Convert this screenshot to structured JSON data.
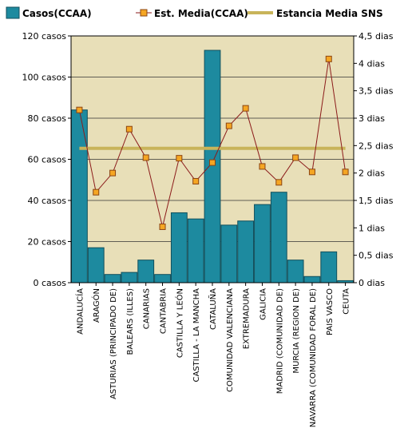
{
  "chart_data": {
    "type": "bar",
    "legend": {
      "position": "top",
      "entries": [
        {
          "label": "Casos(CCAA)",
          "kind": "bar"
        },
        {
          "label": "Est. Media(CCAA)",
          "kind": "line-marker"
        },
        {
          "label": "Estancia Media SNS",
          "kind": "line"
        }
      ]
    },
    "categories": [
      "ANDALUCÍA",
      "ARAGÓN",
      "ASTURIAS (PRINCIPADO DE)",
      "BALEARS (ILLES)",
      "CANARIAS",
      "CANTABRIA",
      "CASTILLA Y LEÓN",
      "CASTILLA - LA MANCHA",
      "CATALUÑA",
      "COMUNIDAD VALENCIANA",
      "EXTREMADURA",
      "GALICIA",
      "MADRID (COMUNIDAD DE)",
      "MURCIA (REGION DE)",
      "NAVARRA (COMUNIDAD FORAL DE)",
      "PAIS VASCO",
      "CEUTA"
    ],
    "series": [
      {
        "name": "Casos(CCAA)",
        "type": "bar",
        "axis": "left",
        "values": [
          84,
          17,
          4,
          5,
          11,
          4,
          34,
          31,
          113,
          28,
          30,
          38,
          44,
          11,
          3,
          15,
          1
        ]
      },
      {
        "name": "Est. Media(CCAA)",
        "type": "line",
        "axis": "right",
        "values": [
          3.15,
          1.65,
          2.0,
          2.8,
          2.28,
          1.02,
          2.27,
          1.85,
          2.19,
          2.86,
          3.18,
          2.12,
          1.83,
          2.28,
          2.02,
          4.08,
          2.02
        ]
      },
      {
        "name": "Estancia Media SNS",
        "type": "constant-line",
        "axis": "right",
        "value": 2.45
      }
    ],
    "y_left": {
      "ylim": [
        0,
        120
      ],
      "ticks": [
        0,
        20,
        40,
        60,
        80,
        100,
        120
      ],
      "tick_labels": [
        "0 casos",
        "20 casos",
        "40 casos",
        "60 casos",
        "80 casos",
        "100 casos",
        "120 casos"
      ]
    },
    "y_right": {
      "ylim": [
        0,
        4.5
      ],
      "ticks": [
        0,
        0.5,
        1,
        1.5,
        2,
        2.5,
        3,
        3.5,
        4,
        4.5
      ],
      "tick_labels": [
        "0 dias",
        "0,5 dias",
        "1 dias",
        "1,5 dias",
        "2 dias",
        "2,5 dias",
        "3 dias",
        "3,5 dias",
        "4 dias",
        "4,5 dias"
      ]
    },
    "grid": "horizontal",
    "colors": {
      "plot_background": "#e8dfb8",
      "bar_fill": "#1d8a9f",
      "bar_stroke": "#114f5c",
      "line": "#8b1a1a",
      "marker_fill": "#f5a623",
      "marker_stroke": "#8b4513",
      "sns_line": "#c8b45a"
    }
  }
}
